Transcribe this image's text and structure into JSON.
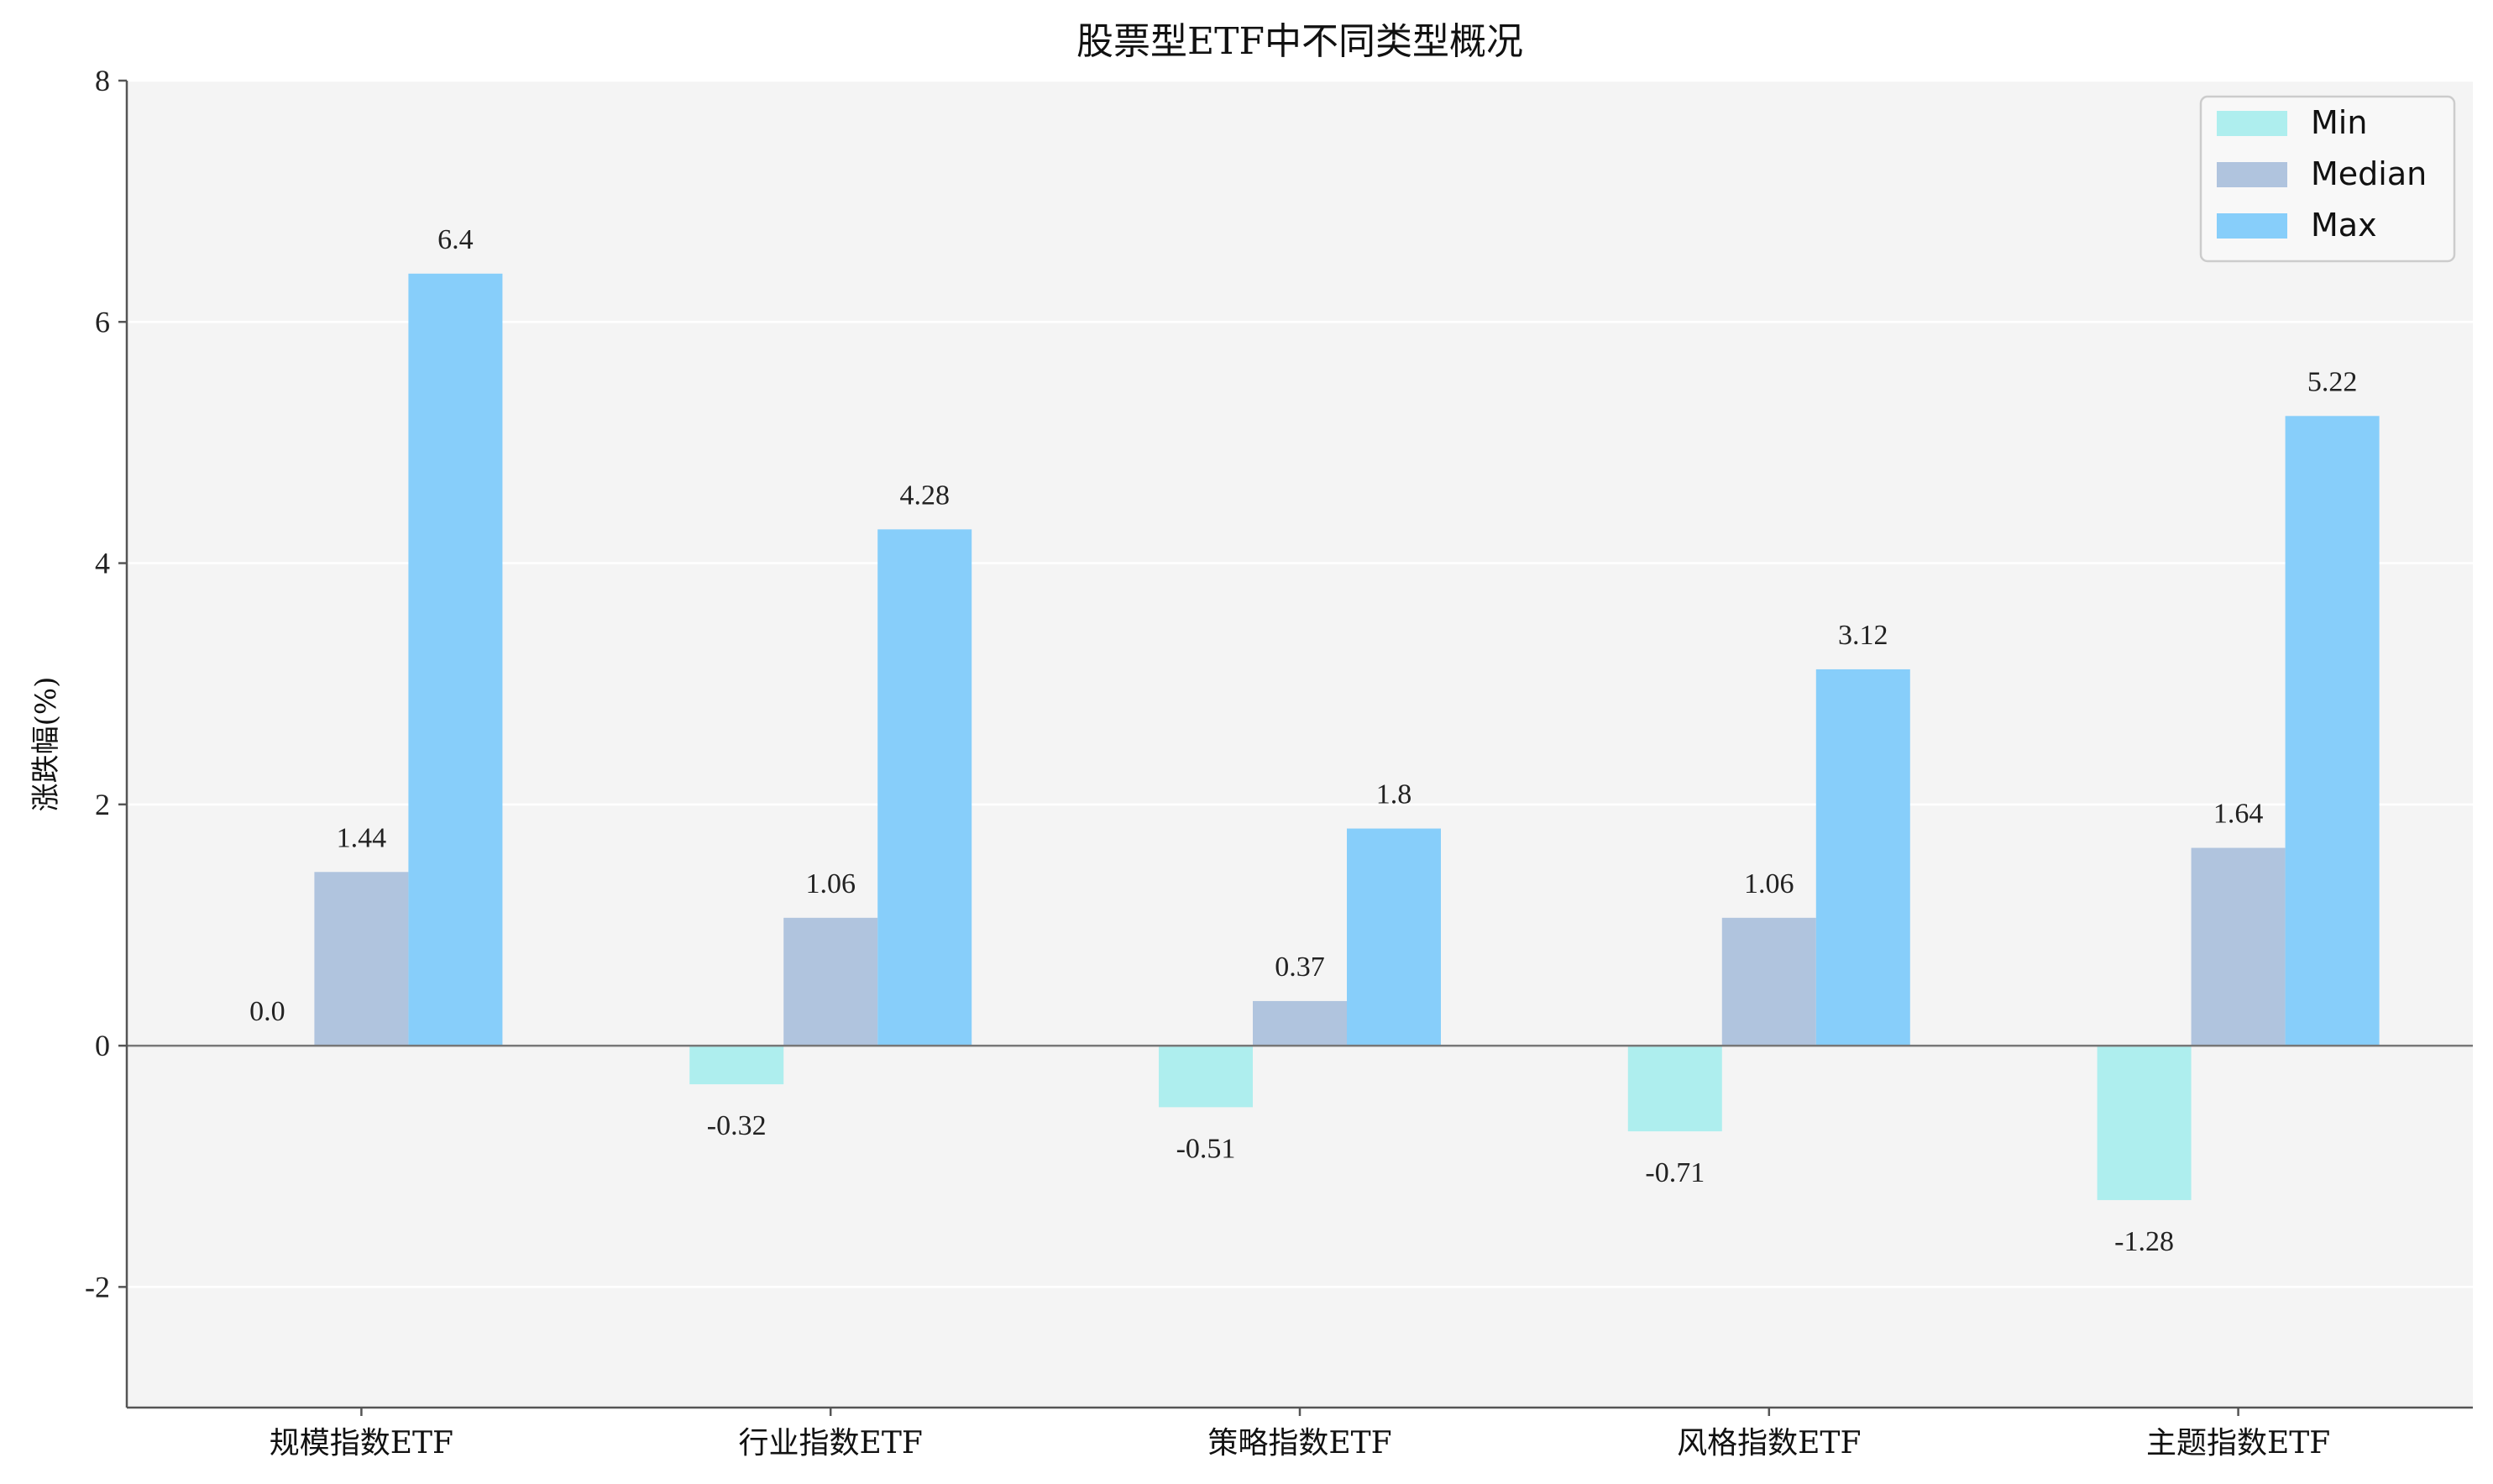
{
  "chart_data": {
    "type": "bar",
    "title": "股票型ETF中不同类型概况",
    "xlabel": "",
    "ylabel": "涨跌幅(%)",
    "ylim": [
      -3,
      8
    ],
    "yticks": [
      -2,
      0,
      2,
      4,
      6,
      8
    ],
    "categories": [
      "规模指数ETF",
      "行业指数ETF",
      "策略指数ETF",
      "风格指数ETF",
      "主题指数ETF"
    ],
    "series": [
      {
        "name": "Min",
        "color": "#aeeeee",
        "values": [
          0.0,
          -0.32,
          -0.51,
          -0.71,
          -1.28
        ],
        "labels": [
          "0.0",
          "-0.32",
          "-0.51",
          "-0.71",
          "-1.28"
        ]
      },
      {
        "name": "Median",
        "color": "#b0c4de",
        "values": [
          1.44,
          1.06,
          0.37,
          1.06,
          1.64
        ],
        "labels": [
          "1.44",
          "1.06",
          "0.37",
          "1.06",
          "1.64"
        ]
      },
      {
        "name": "Max",
        "color": "#87cefa",
        "values": [
          6.4,
          4.28,
          1.8,
          3.12,
          5.22
        ],
        "labels": [
          "6.4",
          "4.28",
          "1.8",
          "3.12",
          "5.22"
        ]
      }
    ],
    "grid": "horizontal",
    "legend": "top-right",
    "background": "#f4f4f4"
  }
}
